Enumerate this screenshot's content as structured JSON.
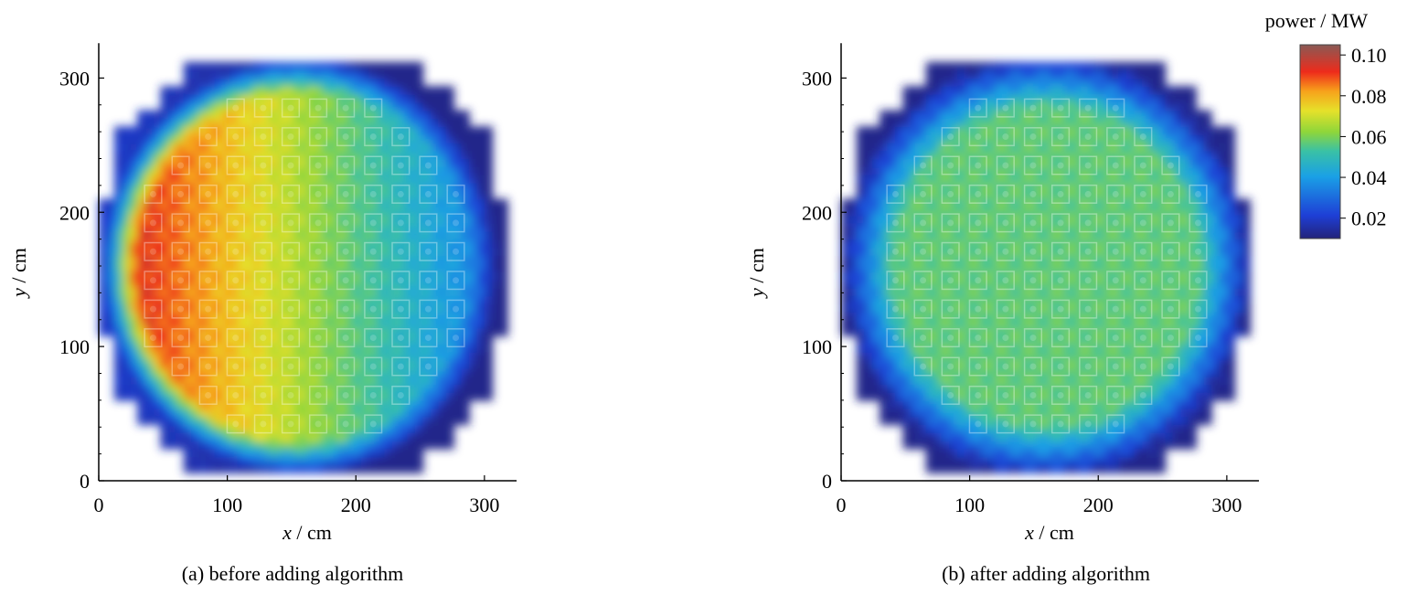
{
  "chart_data": [
    {
      "type": "heatmap",
      "caption": "(a) before adding algorithm",
      "xlabel": "x / cm",
      "ylabel": "y / cm",
      "xlim": [
        0,
        320
      ],
      "ylim": [
        0,
        320
      ],
      "xticks": [
        0,
        100,
        200,
        300
      ],
      "yticks": [
        0,
        100,
        200,
        300
      ],
      "field": {
        "distribution": "left-right gradient",
        "left_peak_power": 0.1,
        "right_low_power": 0.03
      }
    },
    {
      "type": "heatmap",
      "caption": "(b) after adding algorithm",
      "xlabel": "x / cm",
      "ylabel": "y / cm",
      "xlim": [
        0,
        320
      ],
      "ylim": [
        0,
        320
      ],
      "xticks": [
        0,
        100,
        200,
        300
      ],
      "yticks": [
        0,
        100,
        200,
        300
      ],
      "field": {
        "distribution": "flattened",
        "typical_power": 0.057,
        "edge_power": 0.035
      }
    }
  ],
  "colorbar": {
    "title": "power / MW",
    "range": [
      0.01,
      0.105
    ],
    "ticks": [
      "0.10",
      "0.08",
      "0.06",
      "0.04",
      "0.02"
    ],
    "tick_values": [
      0.1,
      0.08,
      0.06,
      0.04,
      0.02
    ],
    "colors": [
      "#23237a",
      "#1e3fd6",
      "#1aa0e6",
      "#39c1a6",
      "#8ed63a",
      "#e6e12a",
      "#f7a21b",
      "#ee2b1b",
      "#8a5a55"
    ]
  }
}
